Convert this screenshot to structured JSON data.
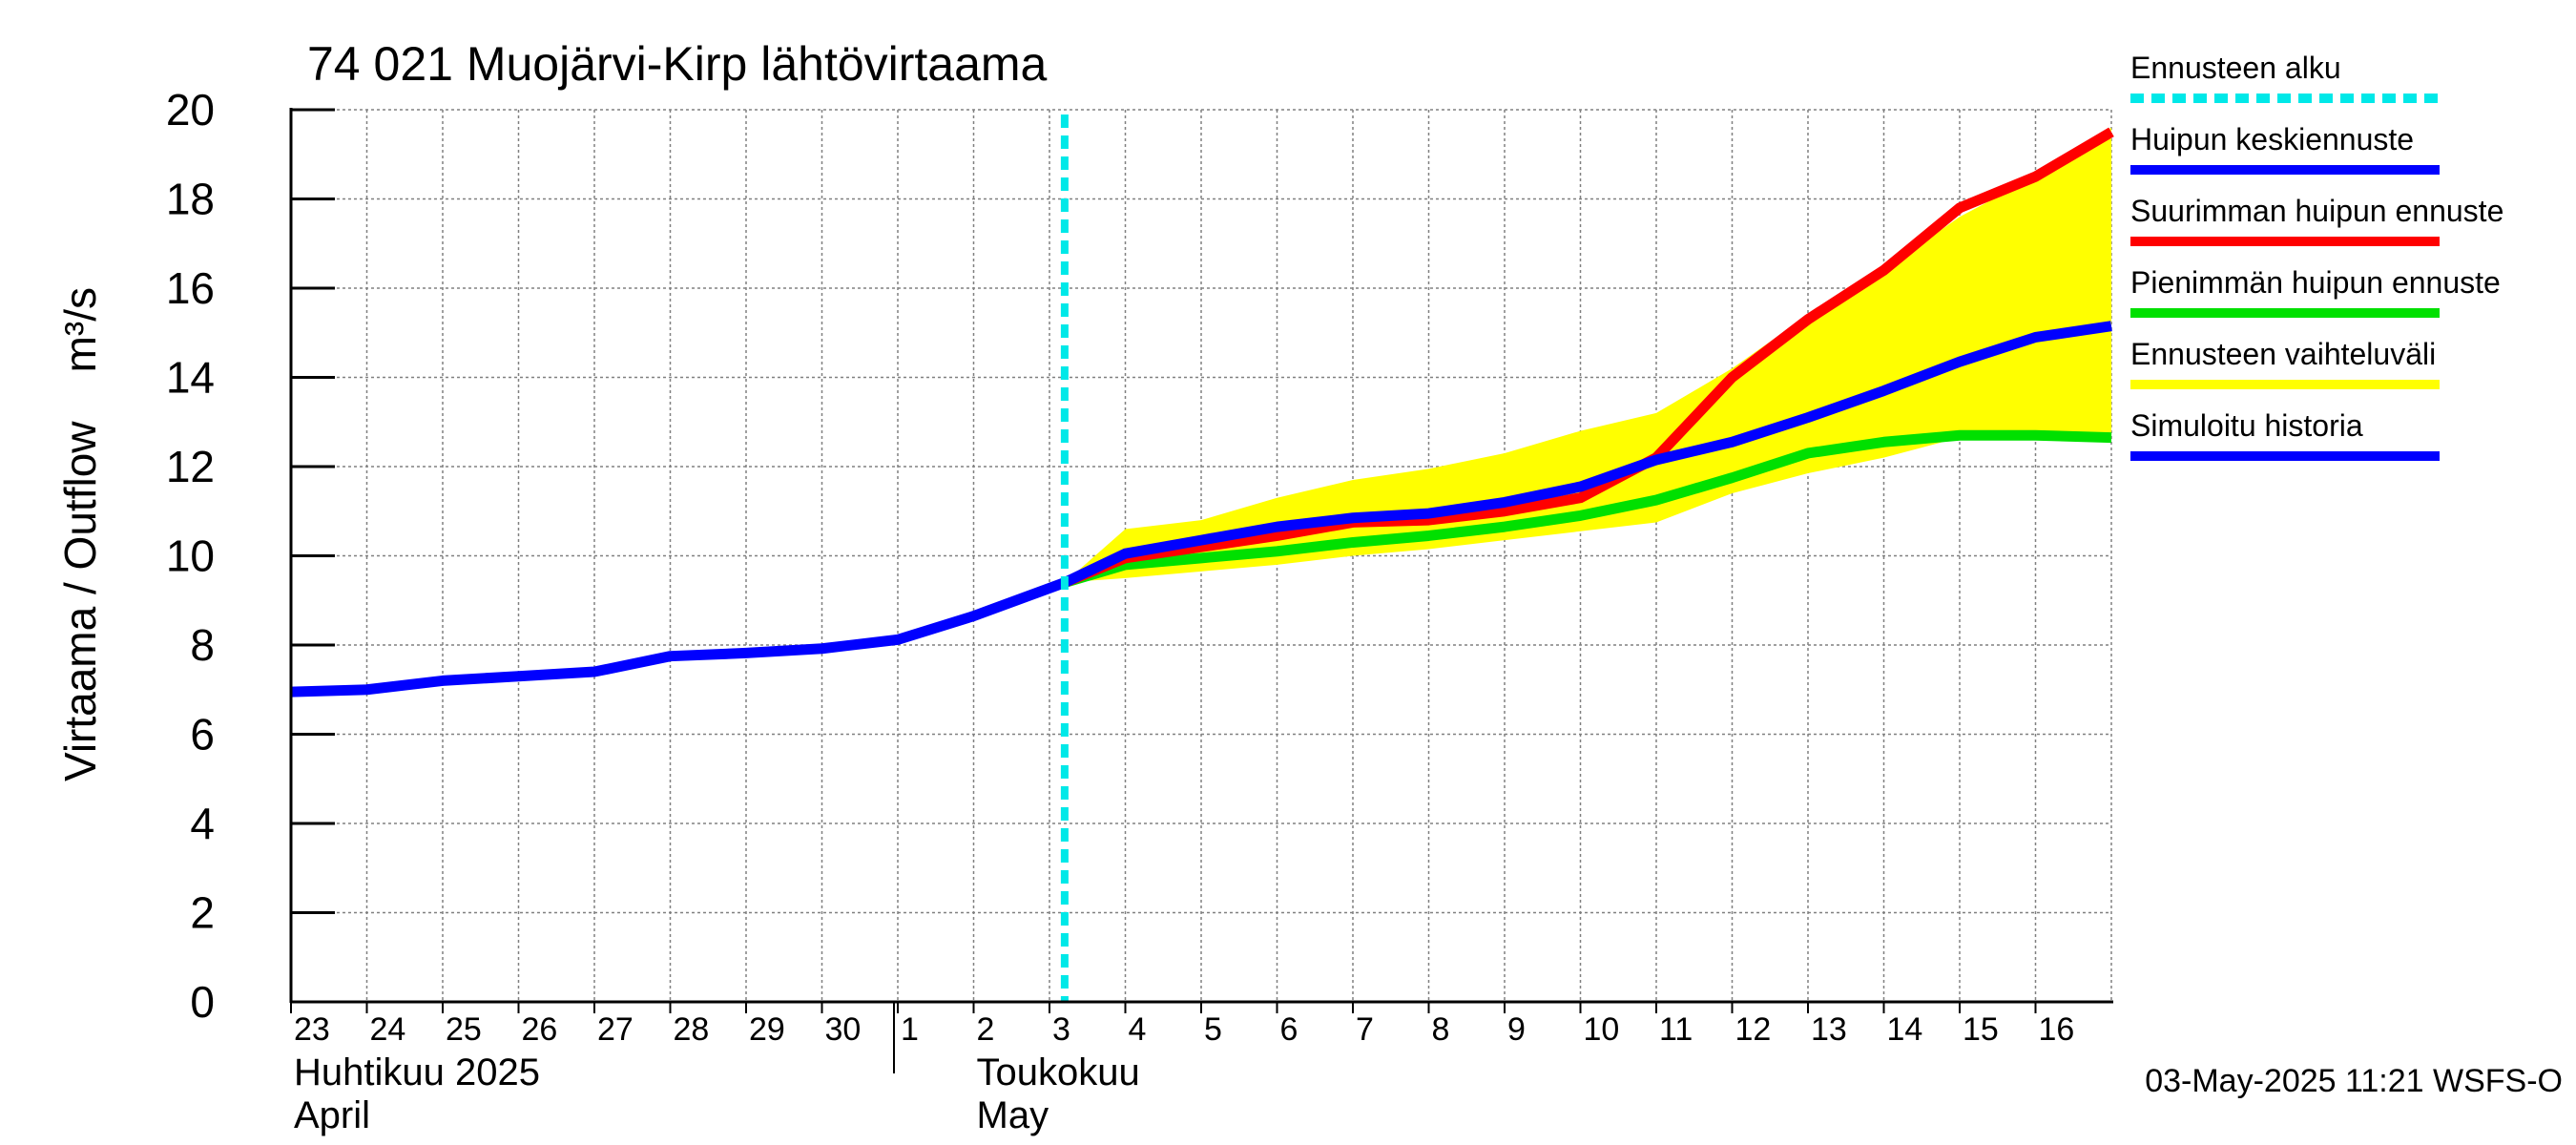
{
  "chart_data": {
    "type": "line",
    "title": "74 021 Muojärvi-Kirp lähtövirtaama",
    "ylabel": "Virtaama / Outflow    m³/s",
    "ylim": [
      0,
      20
    ],
    "yticks": [
      "0",
      "2",
      "4",
      "6",
      "8",
      "10",
      "12",
      "14",
      "16",
      "18",
      "20"
    ],
    "xlim": [
      0,
      24
    ],
    "xticks": [
      {
        "x": 0,
        "label": "23"
      },
      {
        "x": 1,
        "label": "24"
      },
      {
        "x": 2,
        "label": "25"
      },
      {
        "x": 3,
        "label": "26"
      },
      {
        "x": 4,
        "label": "27"
      },
      {
        "x": 5,
        "label": "28"
      },
      {
        "x": 6,
        "label": "29"
      },
      {
        "x": 7,
        "label": "30"
      },
      {
        "x": 8,
        "label": "1"
      },
      {
        "x": 9,
        "label": "2"
      },
      {
        "x": 10,
        "label": "3"
      },
      {
        "x": 11,
        "label": "4"
      },
      {
        "x": 12,
        "label": "5"
      },
      {
        "x": 13,
        "label": "6"
      },
      {
        "x": 14,
        "label": "7"
      },
      {
        "x": 15,
        "label": "8"
      },
      {
        "x": 16,
        "label": "9"
      },
      {
        "x": 17,
        "label": "10"
      },
      {
        "x": 18,
        "label": "11"
      },
      {
        "x": 19,
        "label": "12"
      },
      {
        "x": 20,
        "label": "13"
      },
      {
        "x": 21,
        "label": "14"
      },
      {
        "x": 22,
        "label": "15"
      },
      {
        "x": 23,
        "label": "16"
      }
    ],
    "month_labels": [
      {
        "x": 0,
        "fi": "Huhtikuu  2025",
        "en": "April"
      },
      {
        "x": 9,
        "fi": "Toukokuu",
        "en": "May"
      }
    ],
    "month_divider_x": 8,
    "grid": true,
    "legend_position": "right",
    "forecast_start_x": 10.2,
    "series": [
      {
        "name": "Ennusteen vaihteluväli",
        "type": "band",
        "color": "#ffff00",
        "x": [
          10.2,
          11,
          12,
          13,
          14,
          15,
          16,
          17,
          18,
          19,
          20,
          21,
          22,
          23,
          24
        ],
        "upper": [
          9.4,
          10.6,
          10.8,
          11.3,
          11.7,
          11.95,
          12.3,
          12.8,
          13.2,
          14.2,
          15.4,
          16.4,
          17.6,
          18.5,
          19.6
        ],
        "lower": [
          9.4,
          9.5,
          9.65,
          9.8,
          10.0,
          10.15,
          10.35,
          10.55,
          10.75,
          11.4,
          11.85,
          12.2,
          12.65,
          12.7,
          12.7
        ]
      },
      {
        "name": "Pienimmän huipun ennuste",
        "color": "#00e000",
        "x": [
          10.2,
          11,
          12,
          13,
          14,
          15,
          16,
          17,
          18,
          19,
          20,
          21,
          22,
          23,
          24
        ],
        "y": [
          9.4,
          9.8,
          9.95,
          10.1,
          10.3,
          10.45,
          10.65,
          10.9,
          11.25,
          11.75,
          12.3,
          12.55,
          12.7,
          12.7,
          12.65
        ]
      },
      {
        "name": "Suurimman huipun ennuste",
        "color": "#ff0000",
        "x": [
          10.2,
          11,
          12,
          13,
          14,
          15,
          16,
          17,
          18,
          19,
          20,
          21,
          22,
          23,
          24
        ],
        "y": [
          9.4,
          9.95,
          10.2,
          10.45,
          10.75,
          10.8,
          11.0,
          11.3,
          12.2,
          14.0,
          15.3,
          16.4,
          17.8,
          18.5,
          19.5
        ]
      },
      {
        "name": "Huipun keskiennuste",
        "color": "#0000ff",
        "x": [
          10.2,
          11,
          12,
          13,
          14,
          15,
          16,
          17,
          18,
          19,
          20,
          21,
          22,
          23,
          24
        ],
        "y": [
          9.4,
          10.05,
          10.35,
          10.65,
          10.85,
          10.95,
          11.2,
          11.55,
          12.15,
          12.55,
          13.1,
          13.7,
          14.35,
          14.9,
          15.15
        ]
      },
      {
        "name": "Simuloitu historia",
        "color": "#0000ff",
        "x": [
          0,
          1,
          2,
          3,
          4,
          5,
          6,
          7,
          8,
          9,
          10.2
        ],
        "y": [
          6.95,
          7.0,
          7.2,
          7.3,
          7.4,
          7.75,
          7.82,
          7.92,
          8.12,
          8.65,
          9.4
        ]
      }
    ],
    "legend": [
      {
        "label": "Ennusteen alku",
        "color": "#00e8e8",
        "style": "dashed"
      },
      {
        "label": "Huipun keskiennuste",
        "color": "#0000ff",
        "style": "solid"
      },
      {
        "label": "Suurimman huipun ennuste",
        "color": "#ff0000",
        "style": "solid"
      },
      {
        "label": "Pienimmän huipun ennuste",
        "color": "#00e000",
        "style": "solid"
      },
      {
        "label": "Ennusteen vaihteluväli",
        "color": "#ffff00",
        "style": "solid"
      },
      {
        "label": "Simuloitu historia",
        "color": "#0000ff",
        "style": "solid"
      }
    ],
    "footer": "03-May-2025 11:21 WSFS-O"
  }
}
